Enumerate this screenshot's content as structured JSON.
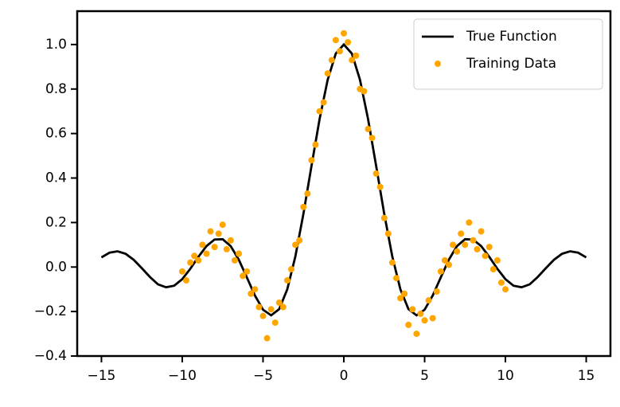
{
  "chart_data": {
    "type": "line",
    "xlim": [
      -16.5,
      16.5
    ],
    "ylim": [
      -0.4,
      1.15
    ],
    "xticks": [
      {
        "value": -15,
        "label": "−15"
      },
      {
        "value": -10,
        "label": "−10"
      },
      {
        "value": -5,
        "label": "−5"
      },
      0,
      5,
      10,
      15
    ],
    "yticks": [
      {
        "value": -0.4,
        "label": "−0.4"
      },
      {
        "value": -0.2,
        "label": "−0.2"
      },
      {
        "value": 0,
        "label": "0.0"
      },
      0.2,
      0.4,
      0.6,
      0.8,
      {
        "value": 1,
        "label": "1.0"
      }
    ],
    "legend": "upper right",
    "series": [
      {
        "name": "True Function",
        "type": "line",
        "color": "#000000",
        "x": [
          -15,
          -14.5,
          -14,
          -13.5,
          -13,
          -12.5,
          -12,
          -11.5,
          -11,
          -10.5,
          -10,
          -9.5,
          -9,
          -8.5,
          -8,
          -7.5,
          -7,
          -6.5,
          -6,
          -5.5,
          -5,
          -4.5,
          -4,
          -3.5,
          -3,
          -2.5,
          -2,
          -1.5,
          -1,
          -0.5,
          0,
          0.5,
          1,
          1.5,
          2,
          2.5,
          3,
          3.5,
          4,
          4.5,
          5,
          5.5,
          6,
          6.5,
          7,
          7.5,
          8,
          8.5,
          9,
          9.5,
          10,
          10.5,
          11,
          11.5,
          12,
          12.5,
          13,
          13.5,
          14,
          14.5,
          15
        ],
        "values": [
          0.0433,
          0.0645,
          0.0707,
          0.0593,
          0.0323,
          -0.0053,
          -0.0447,
          -0.0779,
          -0.0909,
          -0.0839,
          -0.0544,
          -0.0078,
          0.0458,
          0.0939,
          0.1237,
          0.125,
          0.0939,
          0.0332,
          -0.0466,
          -0.1283,
          -0.1918,
          -0.2172,
          -0.1892,
          -0.1002,
          0.047,
          0.2394,
          0.4546,
          0.665,
          0.8415,
          0.9589,
          1,
          0.9589,
          0.8415,
          0.665,
          0.4546,
          0.2394,
          0.047,
          -0.1002,
          -0.1892,
          -0.2172,
          -0.1918,
          -0.1283,
          -0.0466,
          0.0332,
          0.0939,
          0.125,
          0.1237,
          0.0939,
          0.0458,
          -0.0078,
          -0.0544,
          -0.0839,
          -0.0909,
          -0.0779,
          -0.0447,
          -0.0053,
          0.0323,
          0.0593,
          0.0707,
          0.0645,
          0.0433
        ]
      },
      {
        "name": "Training Data",
        "type": "scatter",
        "color": "#ffa500",
        "x": [
          -10,
          -9.75,
          -9.5,
          -9.25,
          -9,
          -8.75,
          -8.5,
          -8.25,
          -8,
          -7.75,
          -7.5,
          -7.25,
          -7,
          -6.75,
          -6.5,
          -6.25,
          -6,
          -5.75,
          -5.5,
          -5.25,
          -5,
          -4.75,
          -4.5,
          -4.25,
          -4,
          -3.75,
          -3.5,
          -3.25,
          -3,
          -2.75,
          -2.5,
          -2.25,
          -2,
          -1.75,
          -1.5,
          -1.25,
          -1,
          -0.75,
          -0.5,
          -0.25,
          0,
          0.25,
          0.5,
          0.75,
          1,
          1.25,
          1.5,
          1.75,
          2,
          2.25,
          2.5,
          2.75,
          3,
          3.25,
          3.5,
          3.75,
          4,
          4.25,
          4.5,
          4.75,
          5,
          5.25,
          5.5,
          5.75,
          6,
          6.25,
          6.5,
          6.75,
          7,
          7.25,
          7.5,
          7.75,
          8,
          8.25,
          8.5,
          8.75,
          9,
          9.25,
          9.5,
          9.75,
          10
        ],
        "values": [
          -0.02,
          -0.06,
          0.02,
          0.05,
          0.03,
          0.1,
          0.06,
          0.16,
          0.09,
          0.15,
          0.19,
          0.08,
          0.12,
          0.03,
          0.06,
          -0.04,
          -0.02,
          -0.12,
          -0.1,
          -0.18,
          -0.22,
          -0.32,
          -0.19,
          -0.25,
          -0.16,
          -0.18,
          -0.06,
          -0.01,
          0.1,
          0.12,
          0.27,
          0.33,
          0.48,
          0.55,
          0.7,
          0.74,
          0.87,
          0.93,
          1.02,
          0.97,
          1.05,
          1.01,
          0.93,
          0.95,
          0.8,
          0.79,
          0.62,
          0.58,
          0.42,
          0.36,
          0.22,
          0.15,
          0.02,
          -0.05,
          -0.14,
          -0.12,
          -0.26,
          -0.19,
          -0.3,
          -0.21,
          -0.24,
          -0.15,
          -0.23,
          -0.11,
          -0.02,
          0.03,
          0.01,
          0.1,
          0.07,
          0.15,
          0.1,
          0.2,
          0.12,
          0.08,
          0.16,
          0.05,
          0.09,
          -0.01,
          0.03,
          -0.07,
          -0.1
        ]
      }
    ]
  }
}
